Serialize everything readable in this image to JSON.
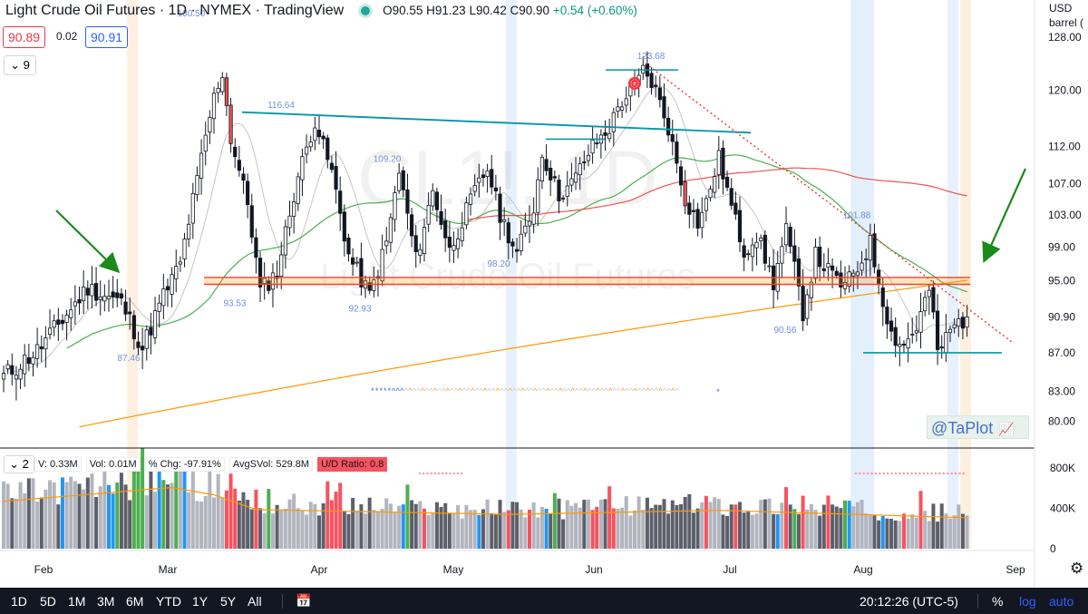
{
  "header": {
    "title": "Light Crude Oil Futures · 1D · NYMEX · TradingView",
    "ohlc": {
      "o": "O90.55",
      "h": "H91.23",
      "l": "L90.42",
      "c": "C90.90",
      "chg": "+0.54 (+0.60%)"
    },
    "bid": "90.89",
    "spread": "0.02",
    "ask": "90.91",
    "collapse_count": "9"
  },
  "scale_header": {
    "currency": "USD",
    "unit": "barrel ("
  },
  "watermark": {
    "symbol": "CL1!, 1D",
    "name": "Light Crude Oil Futures"
  },
  "volume_legend": {
    "collapse_count": "2",
    "items": [
      "V: 0.33M",
      "Vol: 0.01M",
      "% Chg: -97.91%",
      "AvgSVol: 529.8M",
      "U/D Ratio: 0.8"
    ]
  },
  "branding": {
    "label": "@TaPlot"
  },
  "bottom_bar": {
    "timeframes": [
      "1D",
      "5D",
      "1M",
      "3M",
      "6M",
      "YTD",
      "1Y",
      "5Y",
      "All"
    ],
    "clock": "20:12:26 (UTC-5)",
    "percent": "%",
    "log": "log",
    "auto": "auto"
  },
  "colors": {
    "up": "#ffffff",
    "down": "#131722",
    "sma_fast": "#c5c5c5",
    "sma_mid": "#4caf50",
    "sma_slow": "#ef5350",
    "sma_long": "#ff9800",
    "trend_teal": "#0097a7",
    "resistance": "#e53935",
    "support_band": "#ff9800",
    "arrow": "#1b8a1b"
  },
  "chart_data": {
    "type": "candlestick",
    "price_axis": {
      "ticks": [
        128.0,
        120.0,
        112.0,
        107.0,
        103.0,
        99.0,
        95.0,
        90.9,
        87.0,
        83.0,
        80.0
      ],
      "ylim": [
        77.5,
        134.0
      ],
      "current": "90.90"
    },
    "volume_axis": {
      "ticks": [
        "800K",
        "400K",
        "0"
      ],
      "ylim": [
        0,
        900000
      ]
    },
    "x_axis": {
      "labels": [
        "Feb",
        "Mar",
        "Apr",
        "May",
        "Jun",
        "Jul",
        "Aug",
        "Sep"
      ]
    },
    "annotations": [
      "130.50",
      "116.64",
      "109.20",
      "93.53",
      "92.93",
      "98.20",
      "123.68",
      "101.88",
      "90.56",
      "87.46"
    ],
    "key_levels": {
      "horizontal_band": [
        94.6,
        95.4
      ],
      "support": 87.0
    },
    "anchors": [
      [
        0,
        84.5
      ],
      [
        8,
        87.2
      ],
      [
        14,
        90.6
      ],
      [
        20,
        94.2
      ],
      [
        28,
        92.5
      ],
      [
        33,
        87.5
      ],
      [
        38,
        93.3
      ],
      [
        42,
        97.0
      ],
      [
        46,
        107.5
      ],
      [
        50,
        119.0
      ],
      [
        52,
        122.5
      ],
      [
        54,
        113.0
      ],
      [
        58,
        104.5
      ],
      [
        61,
        93.8
      ],
      [
        65,
        96.0
      ],
      [
        70,
        108.0
      ],
      [
        74,
        115.5
      ],
      [
        78,
        108.5
      ],
      [
        82,
        98.0
      ],
      [
        87,
        93.3
      ],
      [
        91,
        99.5
      ],
      [
        94,
        108.5
      ],
      [
        98,
        97.5
      ],
      [
        102,
        106.0
      ],
      [
        106,
        98.5
      ],
      [
        112,
        106.0
      ],
      [
        115,
        109.0
      ],
      [
        118,
        103.0
      ],
      [
        122,
        98.2
      ],
      [
        126,
        104.0
      ],
      [
        128,
        111.0
      ],
      [
        132,
        105.5
      ],
      [
        135,
        107.0
      ],
      [
        138,
        110.0
      ],
      [
        140,
        112.0
      ],
      [
        144,
        114.5
      ],
      [
        146,
        117.5
      ],
      [
        150,
        120.5
      ],
      [
        152,
        123.0
      ],
      [
        155,
        120.0
      ],
      [
        158,
        114.5
      ],
      [
        162,
        105.0
      ],
      [
        165,
        102.0
      ],
      [
        167,
        104.5
      ],
      [
        170,
        110.5
      ],
      [
        173,
        104.0
      ],
      [
        176,
        98.5
      ],
      [
        179,
        100.5
      ],
      [
        183,
        94.8
      ],
      [
        186,
        101.0
      ],
      [
        190,
        91.5
      ],
      [
        193,
        98.0
      ],
      [
        197,
        95.5
      ],
      [
        200,
        94.3
      ],
      [
        203,
        96.5
      ],
      [
        206,
        99.5
      ],
      [
        208,
        95.0
      ],
      [
        211,
        89.0
      ],
      [
        214,
        87.8
      ],
      [
        217,
        89.8
      ],
      [
        220,
        94.0
      ],
      [
        222,
        87.0
      ],
      [
        226,
        90.0
      ],
      [
        229,
        90.9
      ]
    ],
    "volume_profile": [
      [
        0,
        0.58
      ],
      [
        40,
        0.75
      ],
      [
        50,
        0.66
      ],
      [
        60,
        0.48
      ],
      [
        120,
        0.42
      ],
      [
        170,
        0.47
      ],
      [
        229,
        0.38
      ]
    ],
    "volume_red_days": [
      53,
      54,
      55,
      60,
      77,
      78,
      79,
      80,
      100,
      120,
      125,
      140,
      141,
      144,
      145,
      167,
      174,
      186,
      190,
      196,
      214,
      218
    ],
    "volume_blue_days": [
      14,
      25,
      26,
      37,
      43,
      95,
      113,
      129,
      184,
      201,
      209
    ],
    "volume_green_days": [
      27,
      31,
      32,
      33,
      38,
      41,
      63,
      96,
      131,
      188,
      200
    ]
  }
}
